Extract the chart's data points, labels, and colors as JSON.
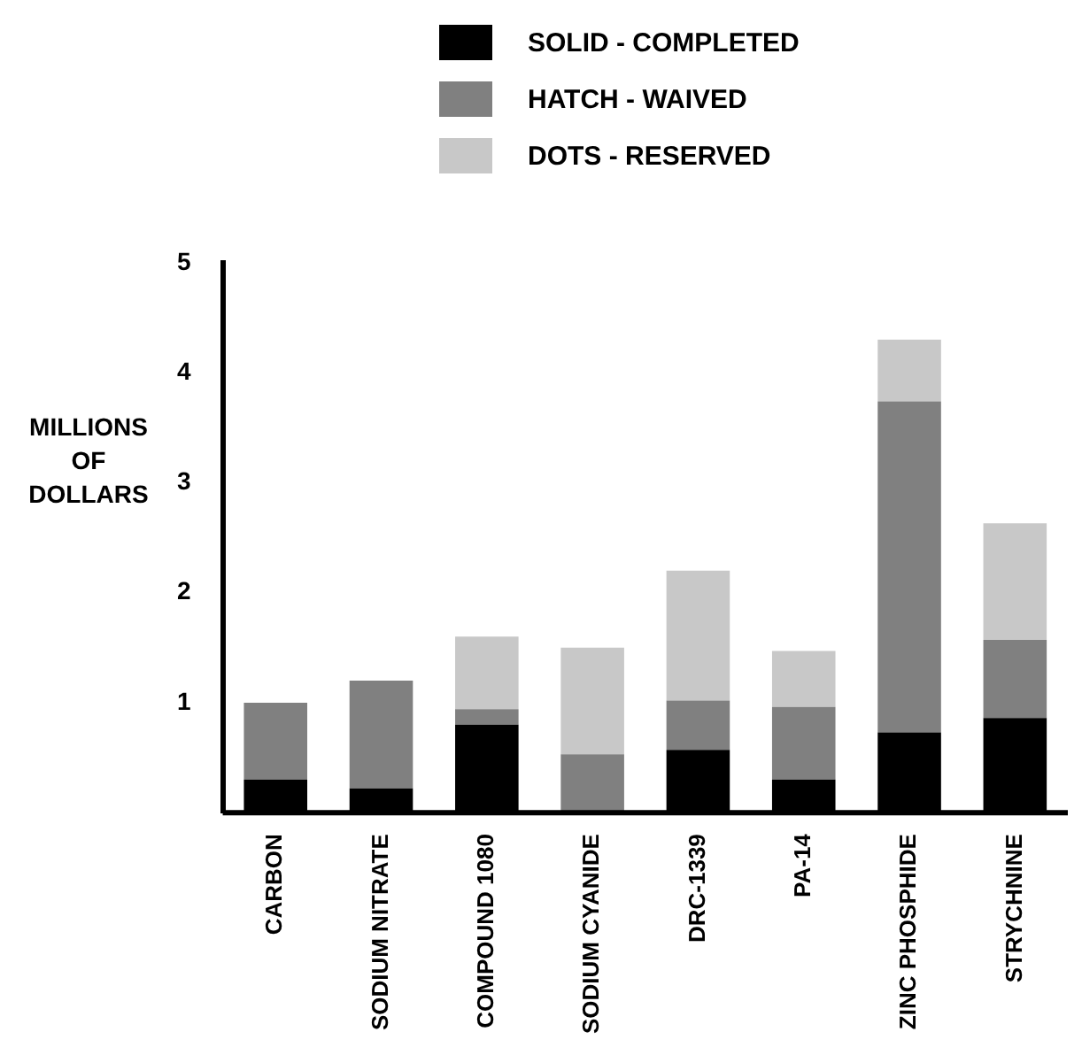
{
  "chart_data": {
    "type": "bar",
    "stacked": true,
    "ylabel": "MILLIONS OF DOLLARS",
    "categories": [
      "CARBON",
      "SODIUM NITRATE",
      "COMPOUND 1080",
      "SODIUM CYANIDE",
      "DRC-1339",
      "PA-14",
      "ZINC PHOSPHIDE",
      "STRYCHNINE"
    ],
    "series": [
      {
        "name": "SOLID - COMPLETED",
        "color": "#000000",
        "values": [
          0.3,
          0.22,
          0.8,
          0,
          0.57,
          0.3,
          0.73,
          0.86
        ]
      },
      {
        "name": "HATCH - WAIVED",
        "color": "#808080",
        "values": [
          0.7,
          0.98,
          0.14,
          0.53,
          0.45,
          0.66,
          3.01,
          0.71
        ]
      },
      {
        "name": "DOTS - RESERVED",
        "color": "#c8c8c8",
        "values": [
          0,
          0,
          0.66,
          0.97,
          1.18,
          0.51,
          0.56,
          1.06
        ]
      }
    ],
    "ylim": [
      0,
      5
    ],
    "yticks": [
      1,
      2,
      3,
      4,
      5
    ],
    "grid": false,
    "legend": "top"
  }
}
